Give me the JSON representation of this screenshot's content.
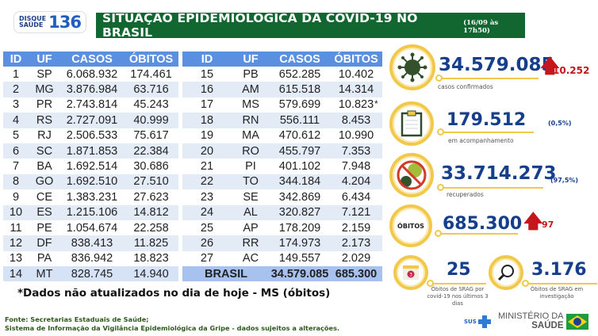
{
  "header": {
    "logo_line1": "DISQUE",
    "logo_line2": "SAÚDE",
    "logo_number": "136",
    "title": "SITUAÇÃO EPIDEMIOLÓGICA DA COVID-19 NO BRASIL",
    "datetime": "(16/09 às 17h50)"
  },
  "table": {
    "headers": [
      "ID",
      "UF",
      "CASOS",
      "ÓBITOS"
    ],
    "left_rows": [
      [
        "1",
        "SP",
        "6.068.932",
        "174.461"
      ],
      [
        "2",
        "MG",
        "3.876.984",
        "63.716"
      ],
      [
        "3",
        "PR",
        "2.743.814",
        "45.243"
      ],
      [
        "4",
        "RS",
        "2.727.091",
        "40.999"
      ],
      [
        "5",
        "RJ",
        "2.506.533",
        "75.617"
      ],
      [
        "6",
        "SC",
        "1.871.853",
        "22.384"
      ],
      [
        "7",
        "BA",
        "1.692.514",
        "30.686"
      ],
      [
        "8",
        "GO",
        "1.692.510",
        "27.510"
      ],
      [
        "9",
        "CE",
        "1.383.231",
        "27.623"
      ],
      [
        "10",
        "ES",
        "1.215.106",
        "14.812"
      ],
      [
        "11",
        "PE",
        "1.054.674",
        "22.258"
      ],
      [
        "12",
        "DF",
        "838.413",
        "11.825"
      ],
      [
        "13",
        "PA",
        "836.942",
        "18.823"
      ],
      [
        "14",
        "MT",
        "828.745",
        "14.940"
      ]
    ],
    "right_rows": [
      [
        "15",
        "PB",
        "652.285",
        "10.402"
      ],
      [
        "16",
        "AM",
        "615.518",
        "14.314"
      ],
      [
        "17",
        "MS",
        "579.699",
        "10.823"
      ],
      [
        "18",
        "RN",
        "556.111",
        "8.453"
      ],
      [
        "19",
        "MA",
        "470.612",
        "10.990"
      ],
      [
        "20",
        "RO",
        "455.797",
        "7.353"
      ],
      [
        "21",
        "PI",
        "401.102",
        "7.948"
      ],
      [
        "22",
        "TO",
        "344.184",
        "4.204"
      ],
      [
        "23",
        "SE",
        "342.869",
        "6.434"
      ],
      [
        "24",
        "AL",
        "320.827",
        "7.121"
      ],
      [
        "25",
        "AP",
        "178.209",
        "2.159"
      ],
      [
        "26",
        "RR",
        "174.973",
        "2.173"
      ],
      [
        "27",
        "AC",
        "149.557",
        "2.029"
      ]
    ],
    "total": {
      "label": "BRASIL",
      "casos": "34.579.085",
      "obitos": "685.300"
    },
    "asterisk": "*"
  },
  "stats": {
    "confirmed": {
      "value": "34.579.085",
      "delta": "10.252",
      "label": "casos confirmados"
    },
    "monitoring": {
      "value": "179.512",
      "pct": "(0,5%)",
      "label": "em acompanhamento"
    },
    "recovered": {
      "value": "33.714.273",
      "pct": "(97,5%)",
      "label": "recuperados"
    },
    "deaths": {
      "badge": "ÓBITOS",
      "value": "685.300",
      "delta": "97"
    },
    "srag_3days": {
      "value": "25",
      "label": "Óbitos de SRAG por covid-19 nos últimos 3 dias",
      "calendar_num": "3"
    },
    "srag_investigation": {
      "value": "3.176",
      "label": "Óbitos de SRAG em investigação"
    }
  },
  "note": "*Dados não atualizados no dia de hoje - MS (óbitos)",
  "source_line1": "Fonte: Secretarias Estaduais de Saúde;",
  "source_line2": "Sistema de Informação da Vigilância Epidemiológica da Gripe - dados sujeitos a alterações.",
  "footer": {
    "sus": "SUS",
    "ministry_line1": "MINISTÉRIO DA",
    "ministry_line2": "SAÚDE"
  }
}
